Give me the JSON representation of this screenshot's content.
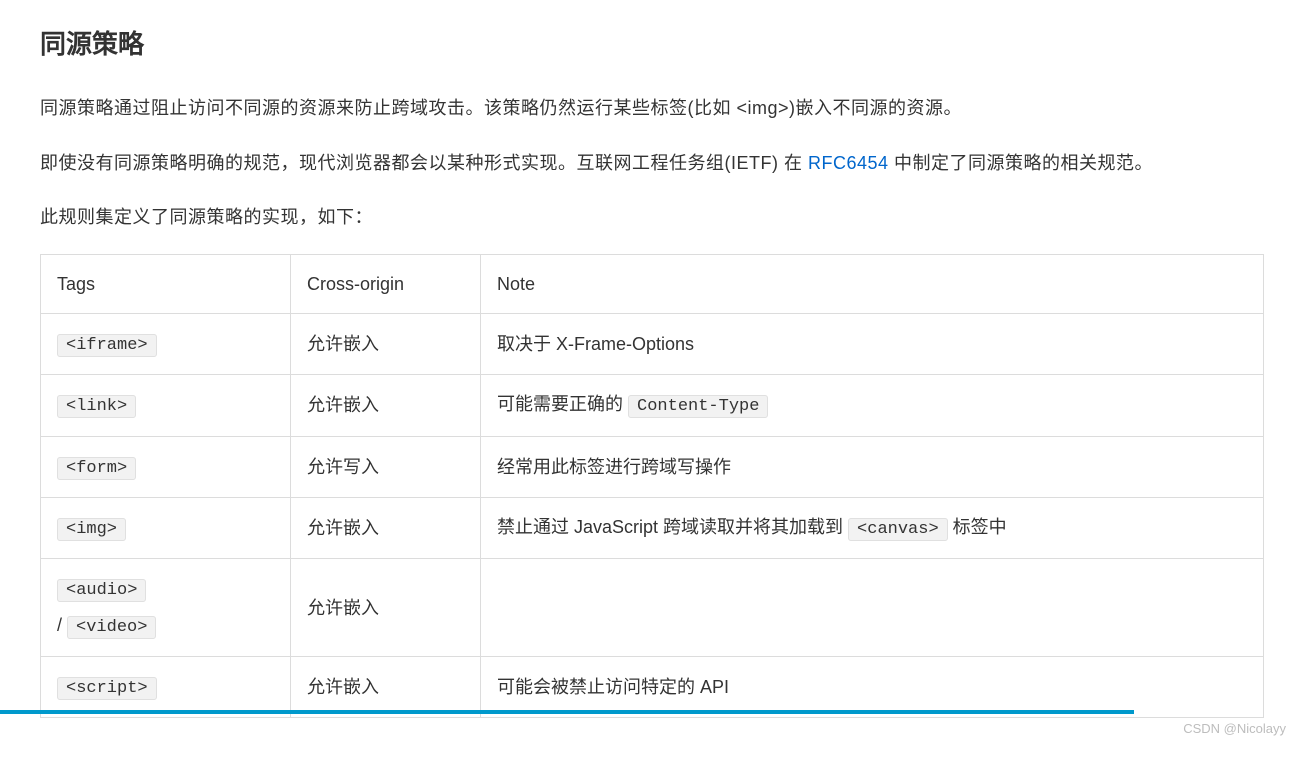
{
  "heading": "同源策略",
  "paragraphs": {
    "p1": "同源策略通过阻止访问不同源的资源来防止跨域攻击。该策略仍然运行某些标签(比如 <img>)嵌入不同源的资源。",
    "p2_pre": "即使没有同源策略明确的规范，现代浏览器都会以某种形式实现。互联网工程任务组(IETF) 在 ",
    "p2_link": "RFC6454",
    "p2_post": " 中制定了同源策略的相关规范。",
    "p3": "此规则集定义了同源策略的实现，如下："
  },
  "table": {
    "headers": [
      "Tags",
      "Cross-origin",
      "Note"
    ],
    "rows": [
      {
        "tag_codes": [
          "<iframe>"
        ],
        "sep": "",
        "cross": "允许嵌入",
        "note_pre": "取决于 X-Frame-Options",
        "note_code": "",
        "note_post": ""
      },
      {
        "tag_codes": [
          "<link>"
        ],
        "sep": "",
        "cross": "允许嵌入",
        "note_pre": "可能需要正确的 ",
        "note_code": "Content-Type",
        "note_post": ""
      },
      {
        "tag_codes": [
          "<form>"
        ],
        "sep": "",
        "cross": "允许写入",
        "note_pre": "经常用此标签进行跨域写操作",
        "note_code": "",
        "note_post": ""
      },
      {
        "tag_codes": [
          "<img>"
        ],
        "sep": "",
        "cross": "允许嵌入",
        "note_pre": "禁止通过 JavaScript 跨域读取并将其加载到 ",
        "note_code": "<canvas>",
        "note_post": " 标签中"
      },
      {
        "tag_codes": [
          "<audio>",
          "<video>"
        ],
        "sep": " / ",
        "cross": "允许嵌入",
        "note_pre": "",
        "note_code": "",
        "note_post": ""
      },
      {
        "tag_codes": [
          "<script>"
        ],
        "sep": "",
        "cross": "允许嵌入",
        "note_pre": "可能会被禁止访问特定的 API",
        "note_code": "",
        "note_post": ""
      }
    ]
  },
  "style": {
    "link_color": "#0066cc",
    "code_bg": "#f2f2f2",
    "code_border": "#e0e0e0",
    "table_border": "#dcdcdc",
    "text_color": "#333333",
    "body_bg": "#ffffff",
    "progress_color": "#0099cc",
    "progress_percent": 87,
    "watermark_color": "#bdbdbd"
  },
  "watermark": "CSDN @Nicolayy"
}
